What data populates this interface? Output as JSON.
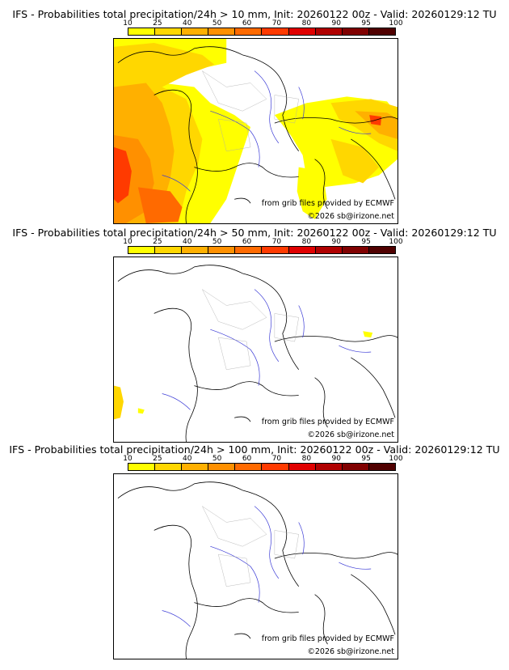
{
  "colors": {
    "scale": [
      "#ffff00",
      "#ffd700",
      "#ffb000",
      "#ff9000",
      "#ff6a00",
      "#ff3a00",
      "#e00000",
      "#b00000",
      "#800000",
      "#500000"
    ],
    "river": "#3b3bd6",
    "border": "#000000",
    "region": "#aaaaaa"
  },
  "scale_labels": [
    "10",
    "25",
    "40",
    "50",
    "60",
    "70",
    "80",
    "90",
    "95",
    "100"
  ],
  "panels": [
    {
      "title": "IFS - Probabilities total precipitation/24h > 10 mm, Init: 20260122 00z - Valid: 20260129:12 TU",
      "source_note": "from grib files provided by ECMWF",
      "copyright": "©2026 sb@irizone.net"
    },
    {
      "title": "IFS - Probabilities total precipitation/24h > 50 mm, Init: 20260122 00z - Valid: 20260129:12 TU",
      "source_note": "from grib files provided by ECMWF",
      "copyright": "©2026 sb@irizone.net"
    },
    {
      "title": "IFS - Probabilities total precipitation/24h > 100 mm, Init: 20260122 00z - Valid: 20260129:12 TU",
      "source_note": "from grib files provided by ECMWF",
      "copyright": "©2026 sb@irizone.net"
    }
  ]
}
